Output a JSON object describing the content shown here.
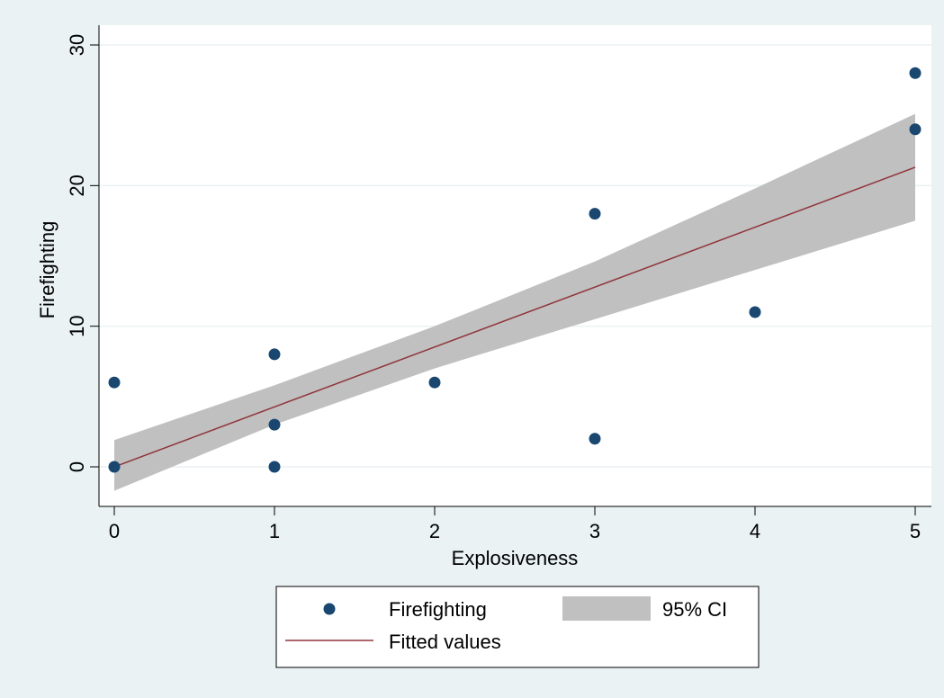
{
  "chart_data": {
    "type": "scatter",
    "xlabel": "Explosiveness",
    "ylabel": "Firefighting",
    "xlim": [
      0,
      5
    ],
    "ylim": [
      -2.5,
      31
    ],
    "xticks": [
      0,
      1,
      2,
      3,
      4,
      5
    ],
    "yticks": [
      0,
      10,
      20,
      30
    ],
    "xtick_labels": [
      "0",
      "1",
      "2",
      "3",
      "4",
      "5"
    ],
    "ytick_labels": [
      "0",
      "10",
      "20",
      "30"
    ],
    "grid": "horizontal",
    "legend_position": "bottom",
    "series": [
      {
        "name": "Firefighting",
        "kind": "scatter",
        "color": "#1a476f",
        "points": [
          {
            "x": 0,
            "y": 6
          },
          {
            "x": 0,
            "y": 0
          },
          {
            "x": 1,
            "y": 8
          },
          {
            "x": 1,
            "y": 3
          },
          {
            "x": 1,
            "y": 0
          },
          {
            "x": 2,
            "y": 6
          },
          {
            "x": 3,
            "y": 18
          },
          {
            "x": 3,
            "y": 2
          },
          {
            "x": 4,
            "y": 11
          },
          {
            "x": 5,
            "y": 28
          },
          {
            "x": 5,
            "y": 24
          }
        ]
      },
      {
        "name": "95% CI",
        "kind": "band",
        "color": "#c0c0c0",
        "x": [
          0,
          1,
          2,
          3,
          4,
          5
        ],
        "lower": [
          -1.7,
          3.0,
          7.0,
          10.5,
          14.0,
          17.5
        ],
        "upper": [
          1.9,
          5.8,
          10.0,
          14.6,
          19.8,
          25.1
        ]
      },
      {
        "name": "Fitted values",
        "kind": "line",
        "color": "#90353b",
        "x": [
          0,
          5
        ],
        "y": [
          0.0,
          21.3
        ]
      }
    ],
    "legend": [
      {
        "label": "Firefighting",
        "symbol": "marker"
      },
      {
        "label": "95% CI",
        "symbol": "band"
      },
      {
        "label": "Fitted values",
        "symbol": "line"
      }
    ]
  }
}
